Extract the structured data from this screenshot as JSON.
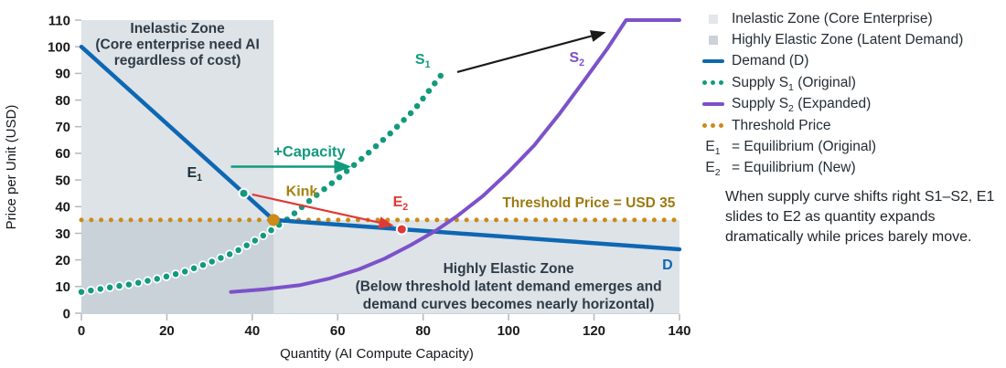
{
  "chart_data": {
    "type": "line",
    "title": "",
    "xlabel": "Quantity (AI Compute Capacity)",
    "ylabel": "Price per Unit (USD)",
    "xlim": [
      0,
      140
    ],
    "ylim": [
      0,
      110
    ],
    "xticks": [
      0,
      20,
      40,
      60,
      80,
      100,
      120,
      140
    ],
    "yticks": [
      0,
      10,
      20,
      30,
      40,
      50,
      60,
      70,
      80,
      90,
      100,
      110
    ],
    "grid": false,
    "zones": [
      {
        "name": "inelastic-zone-area",
        "x0": 0,
        "x1": 45,
        "y0": 0,
        "y1": 110,
        "fill": "rgba(170,184,196,0.40)"
      },
      {
        "name": "highly-elastic-zone-area",
        "x0": 0,
        "x1": 140,
        "y0": 0,
        "y1": 35,
        "fill": "rgba(170,184,196,0.40)"
      }
    ],
    "series": [
      {
        "name": "threshold-price",
        "label": "Threshold Price",
        "color": "#cc8a18",
        "style": "dotted",
        "width": 5,
        "gap": 10.8,
        "points": [
          [
            0,
            35
          ],
          [
            140,
            35
          ]
        ]
      },
      {
        "name": "supply-s1",
        "label": "Supply S1 (Original)",
        "color": "#129a7e",
        "style": "dotted",
        "width": 6.5,
        "gap": 10.5,
        "halo": "#ffffff",
        "points": [
          [
            0,
            8
          ],
          [
            6,
            9.5
          ],
          [
            12,
            11
          ],
          [
            18,
            13
          ],
          [
            24,
            15.5
          ],
          [
            30,
            19
          ],
          [
            36,
            23
          ],
          [
            42,
            28.5
          ],
          [
            48,
            35
          ],
          [
            54,
            43
          ],
          [
            60,
            50.5
          ],
          [
            66,
            58.5
          ],
          [
            72,
            67
          ],
          [
            78,
            76.5
          ],
          [
            85,
            91
          ]
        ]
      },
      {
        "name": "demand",
        "label": "Demand (D)",
        "color": "#0e67b3",
        "style": "solid",
        "width": 4.5,
        "points": [
          [
            0,
            100
          ],
          [
            45,
            35
          ],
          [
            140,
            24
          ]
        ]
      },
      {
        "name": "supply-s2",
        "label": "Supply S2 (Expanded)",
        "color": "#7c51c9",
        "style": "solid",
        "width": 4,
        "points": [
          [
            35,
            8
          ],
          [
            43,
            9
          ],
          [
            51,
            10.5
          ],
          [
            58,
            13
          ],
          [
            65,
            16.5
          ],
          [
            71,
            20.5
          ],
          [
            77,
            25.5
          ],
          [
            83,
            31
          ],
          [
            88,
            36.5
          ],
          [
            94,
            44
          ],
          [
            100,
            53
          ],
          [
            106,
            63
          ],
          [
            112,
            75
          ],
          [
            118,
            88
          ],
          [
            123,
            99
          ],
          [
            127.5,
            110
          ],
          [
            140,
            110
          ]
        ]
      }
    ],
    "markers": [
      {
        "name": "kink-point",
        "x": 45,
        "y": 35,
        "r": 6.5,
        "fill": "#cc8a18",
        "stroke": "none"
      },
      {
        "name": "e1-point",
        "x": 38,
        "y": 45,
        "r": 5,
        "fill": "#129a7e",
        "stroke": "#ffffff"
      },
      {
        "name": "e2-point",
        "x": 75,
        "y": 31.5,
        "r": 5.5,
        "fill": "#df3934",
        "stroke": "#ffffff"
      }
    ],
    "arrows": [
      {
        "name": "capacity-arrow",
        "x1": 35,
        "y1": 55,
        "x2": 62.5,
        "y2": 55,
        "color": "#129a7e",
        "width": 2.5
      },
      {
        "name": "kink-arrow",
        "x1": 40,
        "y1": 44.6,
        "x2": 72.6,
        "y2": 33,
        "color": "#df3934",
        "width": 2.2
      },
      {
        "name": "shift-arrow",
        "x1": 88,
        "y1": 90.5,
        "x2": 122.2,
        "y2": 105.2,
        "color": "#1a1a1a",
        "width": 2.2
      }
    ],
    "annotations": [
      {
        "name": "inelastic-zone-title",
        "x": 22.5,
        "y": 105.2,
        "line_h": 17.5,
        "color": "#2e3b47",
        "size": 15.5,
        "bold": true,
        "anchor": "middle",
        "lines": [
          "Inelastic Zone",
          "(Core enterprise need AI",
          "regardless of cost)"
        ]
      },
      {
        "name": "elastic-zone-title",
        "x": 100,
        "y": 15.1,
        "line_h": 19.5,
        "color": "#2e3b47",
        "size": 15.5,
        "bold": true,
        "anchor": "middle",
        "lines": [
          "Highly Elastic Zone",
          "(Below threshold latent demand emerges and",
          "demand curves becomes nearly horizontal)"
        ]
      },
      {
        "name": "e1-label",
        "text": "E",
        "sub": "1",
        "x": 26.5,
        "y": 51.1,
        "color": "#1d2d3a",
        "size": 16,
        "bold": true,
        "anchor": "middle"
      },
      {
        "name": "e2-label",
        "text": "E",
        "sub": "2",
        "x": 74.7,
        "y": 40.1,
        "color": "#df3934",
        "size": 16,
        "bold": true,
        "anchor": "middle"
      },
      {
        "name": "kink-label",
        "text": "Kink",
        "sub": "",
        "x": 51.6,
        "y": 44.0,
        "color": "#a8800e",
        "size": 16,
        "bold": true,
        "anchor": "middle"
      },
      {
        "name": "capacity-label",
        "text": "+Capacity",
        "sub": "",
        "x": 53.4,
        "y": 58.8,
        "color": "#129a7e",
        "size": 16.5,
        "bold": true,
        "anchor": "middle"
      },
      {
        "name": "s1-label",
        "text": "S",
        "sub": "1",
        "x": 79.9,
        "y": 93.5,
        "color": "#129a7e",
        "size": 16,
        "bold": true,
        "anchor": "middle"
      },
      {
        "name": "s2-label",
        "text": "S",
        "sub": "2",
        "x": 116.0,
        "y": 94.2,
        "color": "#7c51c9",
        "size": 16,
        "bold": true,
        "anchor": "middle"
      },
      {
        "name": "d-label",
        "text": "D",
        "sub": "",
        "x": 137.2,
        "y": 16.4,
        "color": "#0e67b3",
        "size": 16,
        "bold": true,
        "anchor": "middle"
      },
      {
        "name": "threshold-label",
        "text": "Threshold Price = USD 35",
        "sub": "",
        "x": 118.8,
        "y": 39.7,
        "color": "#9c7a10",
        "size": 15.5,
        "bold": true,
        "anchor": "middle"
      }
    ]
  },
  "legend": {
    "items": [
      {
        "marker": "square",
        "color": "#e3e7eb",
        "pre": "Inelastic Zone (Core Enterprise)",
        "sub": "",
        "post": ""
      },
      {
        "marker": "square",
        "color": "#ccd2d8",
        "pre": "Highly Elastic Zone (Latent Demand)",
        "sub": "",
        "post": ""
      },
      {
        "marker": "line",
        "color": "#0e67b3",
        "pre": "Demand (D)",
        "sub": "",
        "post": ""
      },
      {
        "marker": "dots",
        "color": "#129a7e",
        "pre": "Supply S",
        "sub": "1",
        "post": " (Original)"
      },
      {
        "marker": "line",
        "color": "#7c51c9",
        "pre": "Supply S",
        "sub": "2",
        "post": " (Expanded)"
      },
      {
        "marker": "dots",
        "color": "#cc8a18",
        "pre": "Threshold Price",
        "sub": "",
        "post": ""
      },
      {
        "marker": "text",
        "marker_text": "E",
        "marker_sub": "1",
        "pre": "= Equilibrium (Original)",
        "sub": "",
        "post": ""
      },
      {
        "marker": "text",
        "marker_text": "E",
        "marker_sub": "2",
        "pre": "= Equilibrium (New)",
        "sub": "",
        "post": ""
      }
    ]
  },
  "note": {
    "text": "When supply curve shifts right S1–S2, E1 slides to E2 as quantity expands dramatically while prices barely move."
  }
}
